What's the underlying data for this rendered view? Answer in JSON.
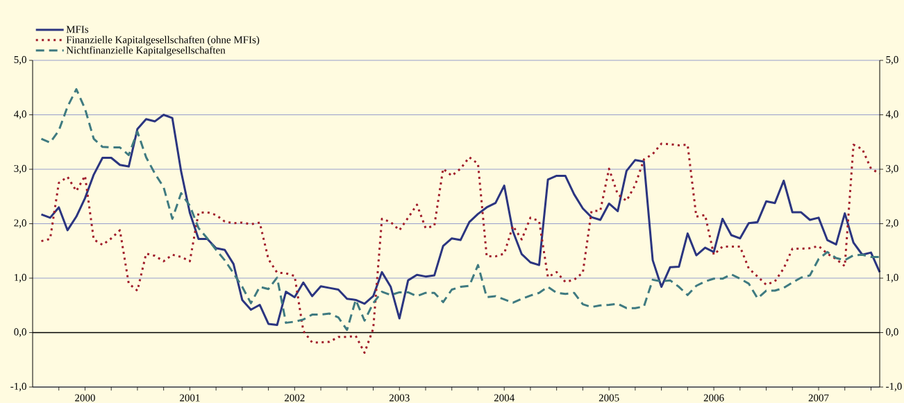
{
  "chart_data": {
    "type": "line",
    "x": [
      2000.083,
      2000.167,
      2000.25,
      2000.333,
      2000.417,
      2000.5,
      2000.583,
      2000.667,
      2000.75,
      2000.833,
      2000.917,
      2001.0,
      2001.083,
      2001.167,
      2001.25,
      2001.333,
      2001.417,
      2001.5,
      2001.583,
      2001.667,
      2001.75,
      2001.833,
      2001.917,
      2002.0,
      2002.083,
      2002.167,
      2002.25,
      2002.333,
      2002.417,
      2002.5,
      2002.583,
      2002.667,
      2002.75,
      2002.833,
      2002.917,
      2003.0,
      2003.083,
      2003.167,
      2003.25,
      2003.333,
      2003.417,
      2003.5,
      2003.583,
      2003.667,
      2003.75,
      2003.833,
      2003.917,
      2004.0,
      2004.083,
      2004.167,
      2004.25,
      2004.333,
      2004.417,
      2004.5,
      2004.583,
      2004.667,
      2004.75,
      2004.833,
      2004.917,
      2005.0,
      2005.083,
      2005.167,
      2005.25,
      2005.333,
      2005.417,
      2005.5,
      2005.583,
      2005.667,
      2005.75,
      2005.833,
      2005.917,
      2006.0,
      2006.083,
      2006.167,
      2006.25,
      2006.333,
      2006.417,
      2006.5,
      2006.583,
      2006.667,
      2006.75,
      2006.833,
      2006.917,
      2007.0,
      2007.083,
      2007.167,
      2007.25,
      2007.333,
      2007.417,
      2007.5,
      2007.583,
      2007.667,
      2007.75,
      2007.833,
      2007.917,
      2008.0,
      2008.083
    ],
    "series": [
      {
        "name": "MFIs",
        "color": "#2b3580",
        "line_style": "solid",
        "values": [
          2.17,
          2.11,
          2.3,
          1.88,
          2.13,
          2.47,
          2.9,
          3.21,
          3.21,
          3.08,
          3.05,
          3.74,
          3.92,
          3.88,
          4.0,
          3.94,
          2.96,
          2.2,
          1.72,
          1.72,
          1.55,
          1.52,
          1.26,
          0.6,
          0.42,
          0.51,
          0.16,
          0.14,
          0.75,
          0.65,
          0.92,
          0.67,
          0.85,
          0.82,
          0.79,
          0.62,
          0.6,
          0.53,
          0.67,
          1.11,
          0.84,
          0.26,
          0.96,
          1.06,
          1.03,
          1.05,
          1.59,
          1.73,
          1.7,
          2.03,
          2.18,
          2.3,
          2.38,
          2.7,
          1.86,
          1.44,
          1.29,
          1.24,
          2.81,
          2.88,
          2.88,
          2.54,
          2.28,
          2.12,
          2.07,
          2.37,
          2.23,
          2.97,
          3.17,
          3.14,
          1.33,
          0.84,
          1.2,
          1.21,
          1.82,
          1.42,
          1.56,
          1.48,
          2.09,
          1.79,
          1.73,
          2.01,
          2.03,
          2.41,
          2.38,
          2.79,
          2.21,
          2.21,
          2.07,
          2.11,
          1.7,
          1.62,
          2.19,
          1.65,
          1.43,
          1.47,
          1.11
        ]
      },
      {
        "name": "Finanzielle Kapitalgesellschaften (ohne MFIs)",
        "color": "#a01c2a",
        "line_style": "dotted",
        "values": [
          1.68,
          1.72,
          2.75,
          2.86,
          2.6,
          2.88,
          1.71,
          1.61,
          1.73,
          1.88,
          0.9,
          0.77,
          1.45,
          1.41,
          1.31,
          1.43,
          1.39,
          1.31,
          2.2,
          2.21,
          2.16,
          2.04,
          2.01,
          2.02,
          1.99,
          2.02,
          1.35,
          1.1,
          1.09,
          1.04,
          0.03,
          -0.18,
          -0.18,
          -0.17,
          -0.08,
          -0.08,
          -0.06,
          -0.37,
          0.07,
          2.09,
          2.03,
          1.88,
          2.11,
          2.35,
          1.92,
          1.96,
          3.01,
          2.88,
          3.01,
          3.22,
          3.1,
          1.4,
          1.4,
          1.45,
          1.96,
          1.71,
          2.11,
          2.05,
          1.02,
          1.11,
          0.93,
          0.97,
          1.1,
          2.23,
          2.24,
          3.01,
          2.54,
          2.42,
          2.71,
          3.18,
          3.28,
          3.47,
          3.46,
          3.44,
          3.45,
          2.13,
          2.16,
          1.43,
          1.58,
          1.58,
          1.58,
          1.18,
          1.03,
          0.88,
          0.94,
          1.18,
          1.54,
          1.54,
          1.55,
          1.59,
          1.45,
          1.35,
          1.22,
          3.45,
          3.37,
          3.01,
          2.92
        ]
      },
      {
        "name": "Nichtfinanzielle Kapitalgesellschaften",
        "color": "#3f7a80",
        "line_style": "dashed",
        "values": [
          3.56,
          3.49,
          3.71,
          4.15,
          4.47,
          4.11,
          3.56,
          3.41,
          3.4,
          3.4,
          3.26,
          3.69,
          3.22,
          2.92,
          2.67,
          2.09,
          2.56,
          2.33,
          1.92,
          1.73,
          1.52,
          1.33,
          1.09,
          0.84,
          0.54,
          0.84,
          0.8,
          1.01,
          0.18,
          0.2,
          0.24,
          0.33,
          0.33,
          0.35,
          0.28,
          0.05,
          0.6,
          0.22,
          0.54,
          0.75,
          0.69,
          0.74,
          0.74,
          0.67,
          0.73,
          0.73,
          0.56,
          0.79,
          0.84,
          0.86,
          1.24,
          0.65,
          0.67,
          0.61,
          0.55,
          0.62,
          0.68,
          0.73,
          0.84,
          0.73,
          0.71,
          0.73,
          0.52,
          0.47,
          0.5,
          0.51,
          0.53,
          0.45,
          0.45,
          0.48,
          0.97,
          0.94,
          0.96,
          0.84,
          0.69,
          0.86,
          0.94,
          0.99,
          0.99,
          1.07,
          0.99,
          0.9,
          0.63,
          0.77,
          0.77,
          0.82,
          0.92,
          1.01,
          1.05,
          1.35,
          1.48,
          1.37,
          1.33,
          1.42,
          1.43,
          1.39,
          1.39
        ]
      }
    ],
    "xlim": [
      2000,
      2008.083
    ],
    "xticks": [
      {
        "value": 2000.25,
        "label": null
      },
      {
        "value": 2000.5,
        "label": "2000"
      },
      {
        "value": 2000.75,
        "label": null
      },
      {
        "value": 2001,
        "label": null
      },
      {
        "value": 2001.25,
        "label": null
      },
      {
        "value": 2001.5,
        "label": "2001"
      },
      {
        "value": 2001.75,
        "label": null
      },
      {
        "value": 2002,
        "label": null
      },
      {
        "value": 2002.25,
        "label": null
      },
      {
        "value": 2002.5,
        "label": "2002"
      },
      {
        "value": 2002.75,
        "label": null
      },
      {
        "value": 2003,
        "label": null
      },
      {
        "value": 2003.25,
        "label": null
      },
      {
        "value": 2003.5,
        "label": "2003"
      },
      {
        "value": 2003.75,
        "label": null
      },
      {
        "value": 2004,
        "label": null
      },
      {
        "value": 2004.25,
        "label": null
      },
      {
        "value": 2004.5,
        "label": "2004"
      },
      {
        "value": 2004.75,
        "label": null
      },
      {
        "value": 2005,
        "label": null
      },
      {
        "value": 2005.25,
        "label": null
      },
      {
        "value": 2005.5,
        "label": "2005"
      },
      {
        "value": 2005.75,
        "label": null
      },
      {
        "value": 2006,
        "label": null
      },
      {
        "value": 2006.25,
        "label": null
      },
      {
        "value": 2006.5,
        "label": "2006"
      },
      {
        "value": 2006.75,
        "label": null
      },
      {
        "value": 2007,
        "label": null
      },
      {
        "value": 2007.25,
        "label": null
      },
      {
        "value": 2007.5,
        "label": "2007"
      },
      {
        "value": 2007.75,
        "label": null
      },
      {
        "value": 2008,
        "label": null
      }
    ],
    "ylim": [
      -1,
      5
    ],
    "yticks": [
      {
        "value": -1,
        "label": "-1,0"
      },
      {
        "value": 0,
        "label": "0,0"
      },
      {
        "value": 1,
        "label": "1,0"
      },
      {
        "value": 2,
        "label": "2,0"
      },
      {
        "value": 3,
        "label": "3,0"
      },
      {
        "value": 4,
        "label": "4,0"
      },
      {
        "value": 5,
        "label": "5,0"
      }
    ],
    "y2lim": [
      -1,
      5
    ],
    "y2ticks": [
      {
        "value": -1,
        "label": "-1,0"
      },
      {
        "value": 0,
        "label": "0,0"
      },
      {
        "value": 1,
        "label": "1,0"
      },
      {
        "value": 2,
        "label": "2,0"
      },
      {
        "value": 3,
        "label": "3,0"
      },
      {
        "value": 4,
        "label": "4,0"
      },
      {
        "value": 5,
        "label": "5,0"
      }
    ],
    "ref_lines": [
      {
        "axis": "y",
        "value": 0,
        "color": "#000000"
      }
    ],
    "grid": "y",
    "legend": "top left",
    "marker": "none"
  }
}
